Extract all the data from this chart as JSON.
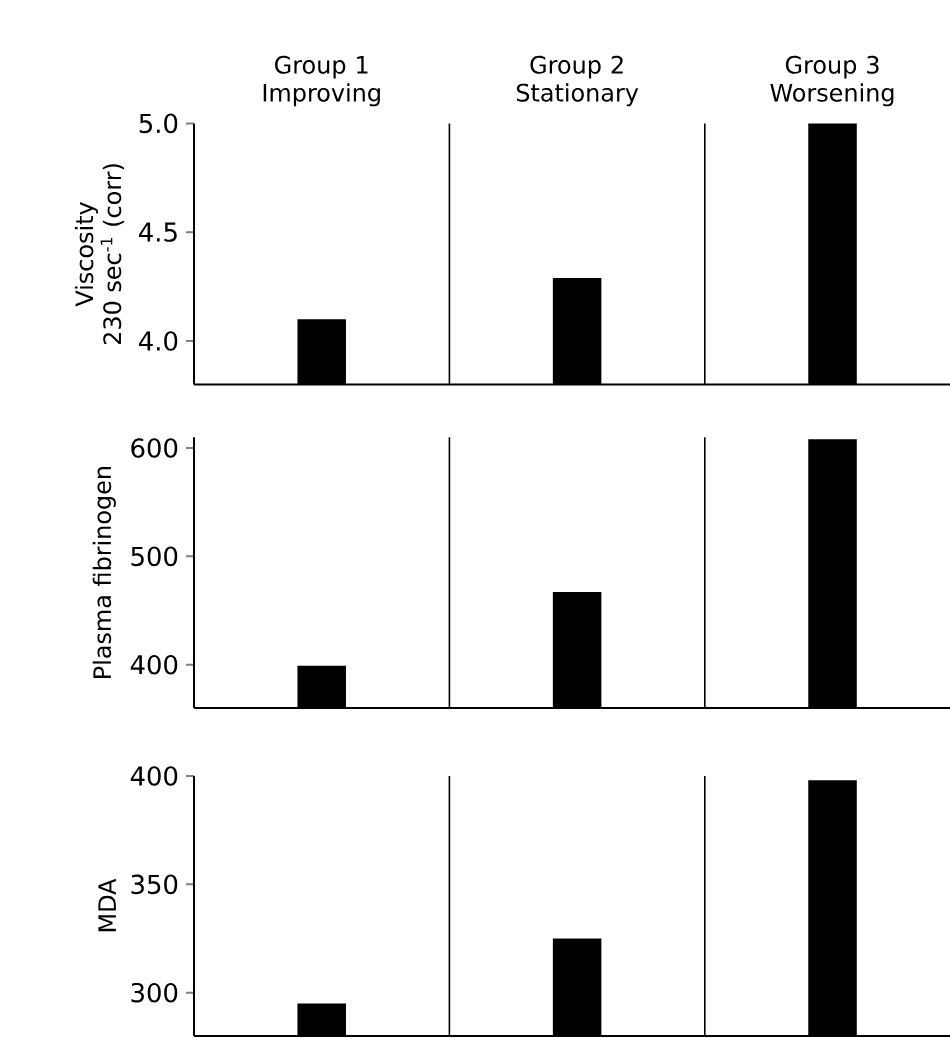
{
  "chart_data": [
    {
      "type": "bar",
      "categories": [
        "Group 1 Improving",
        "Group 2 Stationary",
        "Group 3 Worsening"
      ],
      "ylabel": "Viscosity 230 sec$^{-1}$ (corr)",
      "values": [
        4.1,
        4.29,
        5.0
      ],
      "color": "#000000",
      "ylim": [
        3.8,
        5.0
      ],
      "yticks": [
        {
          "value": 4.0,
          "label": "4.0"
        },
        {
          "value": 4.5,
          "label": "4.5"
        },
        {
          "value": 5.0,
          "label": "5.0"
        }
      ]
    },
    {
      "type": "bar",
      "categories": [
        null,
        null,
        null
      ],
      "ylabel": "Plasma fibrinogen",
      "values": [
        399,
        467,
        608
      ],
      "color": "#000000",
      "ylim": [
        360,
        610
      ],
      "yticks": [
        400,
        500,
        600
      ],
      "tick_labels": "y"
    },
    {
      "type": "bar",
      "categories": [
        null,
        null,
        null
      ],
      "ylabel": "MDA",
      "values": [
        295,
        325,
        398
      ],
      "color": "#000000",
      "ylim": [
        280,
        400
      ],
      "yticks": [
        300,
        350,
        400
      ],
      "tick_labels": "y"
    }
  ]
}
